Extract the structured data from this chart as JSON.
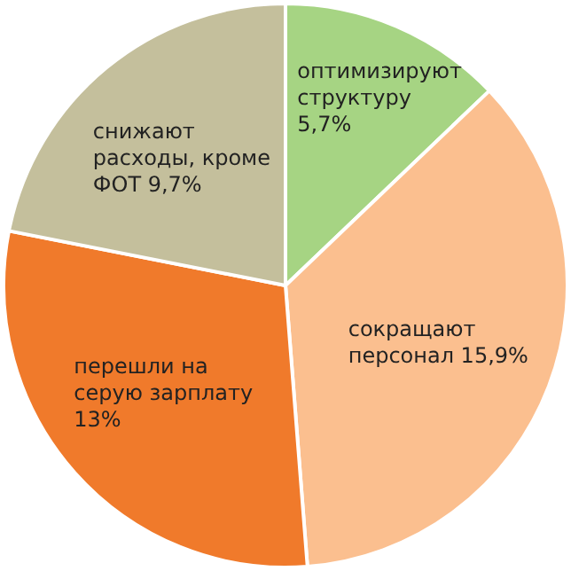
{
  "chart_data": {
    "type": "pie",
    "categories": [
      "оптимизируют структуру",
      "сокращают персонал",
      "перешли на серую зарплату",
      "снижают расходы, кроме ФОТ"
    ],
    "values": [
      5.7,
      15.9,
      13,
      9.7
    ],
    "value_labels": [
      "5,7%",
      "15,9%",
      "13%",
      "9,7%"
    ],
    "colors": [
      "#a6d483",
      "#fbbf8f",
      "#f07a2b",
      "#c4bf9c"
    ],
    "legend": false
  }
}
